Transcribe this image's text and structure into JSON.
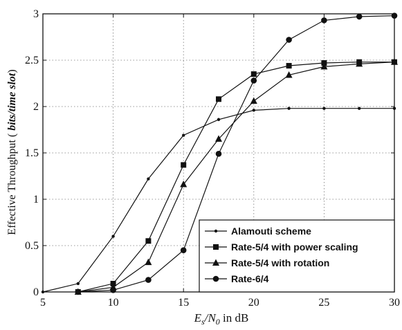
{
  "chart_data": {
    "type": "line",
    "xlabel": "E_s/N_0 in dB",
    "xlabel_parts": {
      "E": "E",
      "s": "s",
      "slash": "/N",
      "zero": "0",
      "unit": " in dB"
    },
    "ylabel": "Effective Throughput ( bits/time slot)",
    "ylabel_parts": {
      "prefix": "Effective Throughput (",
      "italic": " bits/time slot",
      "suffix": ")"
    },
    "xlim": [
      5,
      30
    ],
    "ylim": [
      0,
      3
    ],
    "xticks": [
      5,
      10,
      15,
      20,
      25,
      30
    ],
    "yticks": [
      0,
      0.5,
      1,
      1.5,
      2,
      2.5,
      3
    ],
    "xtick_labels": [
      "5",
      "10",
      "15",
      "20",
      "25",
      "30"
    ],
    "ytick_labels": [
      "0",
      "0.5",
      "1",
      "1.5",
      "2",
      "2.5",
      "3"
    ],
    "grid": true,
    "legend_position": "bottom-right",
    "series": [
      {
        "name": "Alamouti scheme",
        "marker": "small-dot",
        "x": [
          5,
          7.5,
          10,
          12.5,
          15,
          17.5,
          20,
          22.5,
          25,
          27.5,
          30
        ],
        "y": [
          0,
          0.09,
          0.6,
          1.22,
          1.69,
          1.86,
          1.96,
          1.98,
          1.98,
          1.98,
          1.98
        ]
      },
      {
        "name": "Rate-5/4 with power scaling",
        "marker": "square",
        "x": [
          7.5,
          10,
          12.5,
          15,
          17.5,
          20,
          22.5,
          25,
          27.5,
          30
        ],
        "y": [
          0,
          0.09,
          0.55,
          1.37,
          2.08,
          2.35,
          2.44,
          2.47,
          2.48,
          2.48
        ]
      },
      {
        "name": "Rate-5/4 with rotation",
        "marker": "triangle",
        "x": [
          7.5,
          10,
          12.5,
          15,
          17.5,
          20,
          22.5,
          25,
          27.5,
          30
        ],
        "y": [
          0,
          0.05,
          0.32,
          1.16,
          1.65,
          2.06,
          2.34,
          2.43,
          2.46,
          2.48
        ]
      },
      {
        "name": "Rate-6/4",
        "marker": "circle",
        "x": [
          7.5,
          10,
          12.5,
          15,
          17.5,
          20,
          22.5,
          25,
          27.5,
          30
        ],
        "y": [
          0,
          0.02,
          0.13,
          0.45,
          1.49,
          2.28,
          2.72,
          2.93,
          2.97,
          2.98
        ]
      }
    ]
  }
}
